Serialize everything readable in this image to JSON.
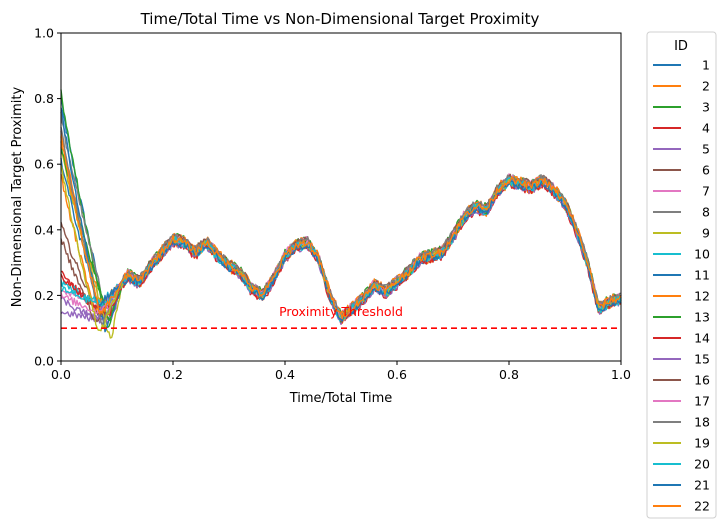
{
  "chart_data": {
    "type": "line",
    "title": "Time/Total Time vs Non-Dimensional Target Proximity",
    "xlabel": "Time/Total Time",
    "ylabel": "Non-Dimensional Target Proximity",
    "xlim": [
      0,
      1
    ],
    "ylim": [
      0,
      1
    ],
    "xticks": [
      0.0,
      0.2,
      0.4,
      0.6,
      0.8,
      1.0
    ],
    "xtick_labels": [
      "0.0",
      "0.2",
      "0.4",
      "0.6",
      "0.8",
      "1.0"
    ],
    "yticks": [
      0.0,
      0.2,
      0.4,
      0.6,
      0.8,
      1.0
    ],
    "ytick_labels": [
      "0.0",
      "0.2",
      "0.4",
      "0.6",
      "0.8",
      "1.0"
    ],
    "grid": false,
    "legend": {
      "title": "ID",
      "placement": "outside right"
    },
    "threshold": {
      "value": 0.1,
      "label": "Proximity Threshold",
      "color": "#ff0000",
      "style": "dashed"
    },
    "shared_path": {
      "x": [
        0.1,
        0.12,
        0.14,
        0.16,
        0.18,
        0.2,
        0.22,
        0.24,
        0.26,
        0.28,
        0.3,
        0.32,
        0.34,
        0.36,
        0.38,
        0.4,
        0.42,
        0.44,
        0.46,
        0.48,
        0.5,
        0.52,
        0.54,
        0.56,
        0.58,
        0.6,
        0.62,
        0.64,
        0.66,
        0.68,
        0.7,
        0.72,
        0.74,
        0.76,
        0.78,
        0.8,
        0.82,
        0.84,
        0.86,
        0.88,
        0.9,
        0.92,
        0.94,
        0.96,
        0.98,
        1.0
      ],
      "y": [
        0.22,
        0.26,
        0.24,
        0.29,
        0.33,
        0.37,
        0.36,
        0.33,
        0.36,
        0.32,
        0.29,
        0.27,
        0.22,
        0.2,
        0.25,
        0.32,
        0.35,
        0.36,
        0.31,
        0.2,
        0.13,
        0.16,
        0.19,
        0.23,
        0.21,
        0.24,
        0.27,
        0.31,
        0.32,
        0.33,
        0.38,
        0.44,
        0.47,
        0.46,
        0.52,
        0.55,
        0.54,
        0.53,
        0.55,
        0.52,
        0.48,
        0.4,
        0.3,
        0.16,
        0.18,
        0.19
      ]
    },
    "series": [
      {
        "name": "1",
        "color": "#1f77b4",
        "start": 0.8,
        "dip": 0.15
      },
      {
        "name": "2",
        "color": "#ff7f0e",
        "start": 0.7,
        "dip": 0.15
      },
      {
        "name": "3",
        "color": "#2ca02c",
        "start": 0.82,
        "dip": 0.1
      },
      {
        "name": "4",
        "color": "#d62728",
        "start": 0.28,
        "dip": 0.13
      },
      {
        "name": "5",
        "color": "#9467bd",
        "start": 0.15,
        "dip": 0.12
      },
      {
        "name": "6",
        "color": "#8c564b",
        "start": 0.42,
        "dip": 0.14
      },
      {
        "name": "7",
        "color": "#e377c2",
        "start": 0.22,
        "dip": 0.16
      },
      {
        "name": "8",
        "color": "#7f7f7f",
        "start": 0.75,
        "dip": 0.13
      },
      {
        "name": "9",
        "color": "#bcbd22",
        "start": 0.65,
        "dip": 0.06
      },
      {
        "name": "10",
        "color": "#17becf",
        "start": 0.24,
        "dip": 0.18
      },
      {
        "name": "11",
        "color": "#1f77b4",
        "start": 0.62,
        "dip": 0.09
      },
      {
        "name": "12",
        "color": "#ff7f0e",
        "start": 0.57,
        "dip": 0.16
      },
      {
        "name": "13",
        "color": "#2ca02c",
        "start": 0.66,
        "dip": 0.12
      },
      {
        "name": "14",
        "color": "#d62728",
        "start": 0.26,
        "dip": 0.14
      },
      {
        "name": "15",
        "color": "#9467bd",
        "start": 0.19,
        "dip": 0.13
      },
      {
        "name": "16",
        "color": "#8c564b",
        "start": 0.38,
        "dip": 0.12
      },
      {
        "name": "17",
        "color": "#e377c2",
        "start": 0.2,
        "dip": 0.15
      },
      {
        "name": "18",
        "color": "#7f7f7f",
        "start": 0.72,
        "dip": 0.11
      },
      {
        "name": "19",
        "color": "#bcbd22",
        "start": 0.6,
        "dip": 0.08
      },
      {
        "name": "20",
        "color": "#17becf",
        "start": 0.22,
        "dip": 0.17
      },
      {
        "name": "21",
        "color": "#1f77b4",
        "start": 0.78,
        "dip": 0.17
      },
      {
        "name": "22",
        "color": "#ff7f0e",
        "start": 0.68,
        "dip": 0.14
      }
    ]
  }
}
